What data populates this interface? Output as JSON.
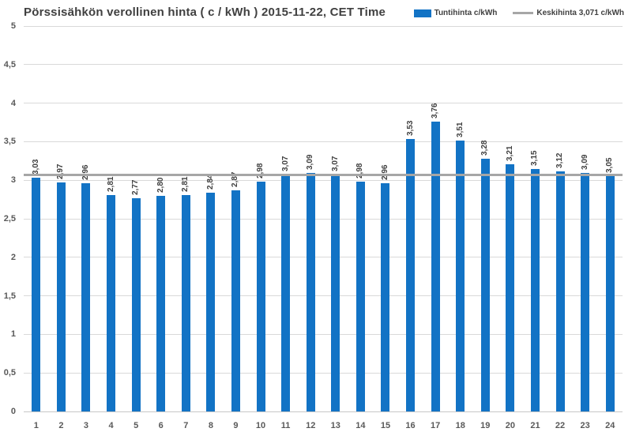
{
  "colors": {
    "bar_blue": "#1273C5",
    "average_gray": "#A6A6A6",
    "gridline_gray": "#D9D9D9",
    "axis_line_gray": "#C6C6C6",
    "title_text": "#404040",
    "tick_text": "#595959",
    "value_label_text": "#404040"
  },
  "chart_data": {
    "type": "bar",
    "title": "Pörssisähkön verollinen hinta ( c / kWh ) 2015-11-22, CET Time",
    "categories": [
      "1",
      "2",
      "3",
      "4",
      "5",
      "6",
      "7",
      "8",
      "9",
      "10",
      "11",
      "12",
      "13",
      "14",
      "15",
      "16",
      "17",
      "18",
      "19",
      "20",
      "21",
      "22",
      "23",
      "24"
    ],
    "values": [
      3.03,
      2.97,
      2.96,
      2.81,
      2.77,
      2.8,
      2.81,
      2.84,
      2.87,
      2.98,
      3.07,
      3.09,
      3.07,
      2.98,
      2.96,
      3.53,
      3.76,
      3.51,
      3.28,
      3.21,
      3.15,
      3.12,
      3.09,
      3.05
    ],
    "value_labels": [
      "3,03",
      "2,97",
      "2,96",
      "2,81",
      "2,77",
      "2,80",
      "2,81",
      "2,84",
      "2,87",
      "2,98",
      "3,07",
      "3,09",
      "3,07",
      "2,98",
      "2,96",
      "3,53",
      "3,76",
      "3,51",
      "3,28",
      "3,21",
      "3,15",
      "3,12",
      "3,09",
      "3,05"
    ],
    "average": 3.071,
    "ylim": [
      0,
      5
    ],
    "ytick_step": 0.5,
    "ytick_labels": [
      "0",
      "0,5",
      "1",
      "1,5",
      "2",
      "2,5",
      "3",
      "3,5",
      "4",
      "4,5",
      "5"
    ],
    "xlabel": "",
    "ylabel": "",
    "grid": true,
    "legend_position": "top-right",
    "legend": [
      {
        "label": "Tuntihinta c/kWh",
        "type": "bar",
        "color": "#1273C5"
      },
      {
        "label": "Keskihinta 3,071 c/kWh",
        "type": "line",
        "color": "#A6A6A6"
      }
    ]
  }
}
